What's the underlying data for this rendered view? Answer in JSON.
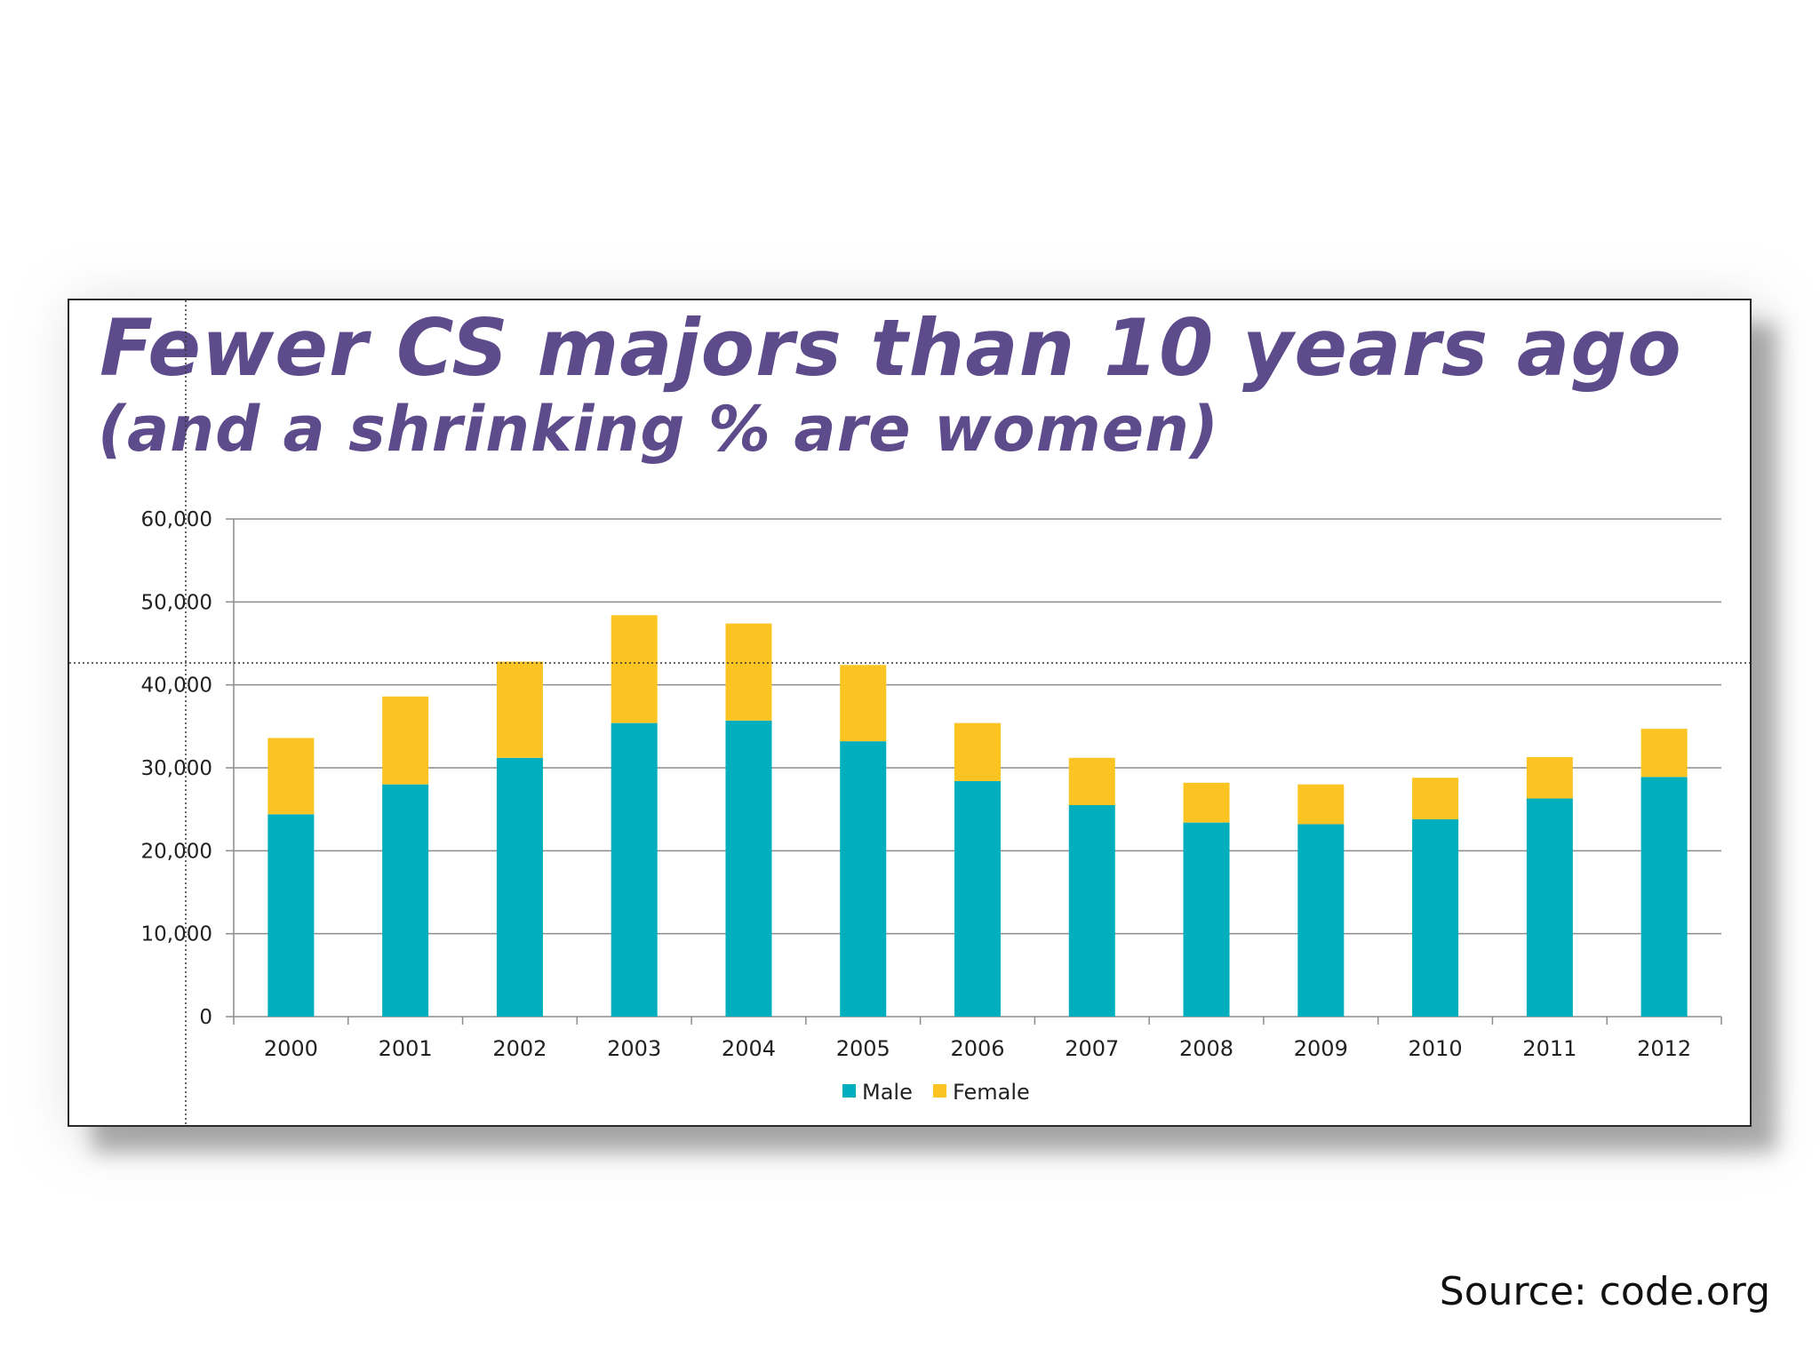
{
  "slide": {
    "source": "Source: code.org"
  },
  "chart_data": {
    "type": "bar",
    "stacked": true,
    "title": "Fewer CS majors than 10 years ago",
    "subtitle": "(and a shrinking % are women)",
    "xlabel": "",
    "ylabel": "",
    "ylim": [
      0,
      60000
    ],
    "yticks": [
      0,
      10000,
      20000,
      30000,
      40000,
      50000,
      60000
    ],
    "ytick_labels": [
      "0",
      "10,000",
      "20,000",
      "30,000",
      "40,000",
      "50,000",
      "60,000"
    ],
    "grid": true,
    "legend_position": "bottom-center",
    "categories": [
      "2000",
      "2001",
      "2002",
      "2003",
      "2004",
      "2005",
      "2006",
      "2007",
      "2008",
      "2009",
      "2010",
      "2011",
      "2012"
    ],
    "series": [
      {
        "name": "Male",
        "color": "#00aebd",
        "values": [
          24400,
          28000,
          31200,
          35400,
          35700,
          33200,
          28400,
          25500,
          23400,
          23200,
          23800,
          26300,
          28900
        ]
      },
      {
        "name": "Female",
        "color": "#fcc423",
        "values": [
          9200,
          10600,
          11600,
          13000,
          11700,
          9200,
          7000,
          5700,
          4800,
          4800,
          5000,
          5000,
          5800
        ]
      }
    ]
  }
}
